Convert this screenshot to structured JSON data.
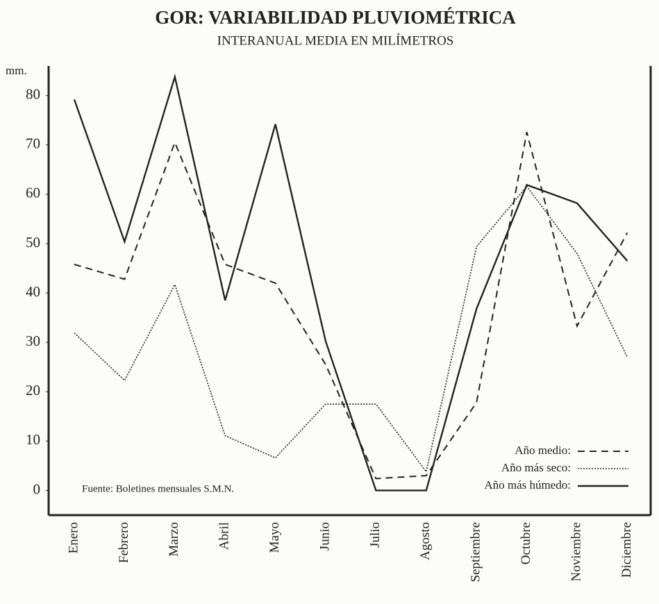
{
  "chart_data": {
    "type": "line",
    "title": "GOR: VARIABILIDAD PLUVIOMÉTRICA",
    "subtitle": "INTERANUAL MEDIA EN MILÍMETROS",
    "y_label": "mm.",
    "annotation": "Fuente: Boletines mensuales S.M.N.",
    "categories": [
      "Enero",
      "Febrero",
      "Marzo",
      "Abril",
      "Mayo",
      "Junio",
      "Julio",
      "Agosto",
      "Septiembre",
      "Octubre",
      "Noviembre",
      "Diciembre"
    ],
    "series": [
      {
        "name": "Año medio:",
        "color": "#222222",
        "style": "dashed",
        "values": [
          45.8,
          42.8,
          70.5,
          45.8,
          42,
          25.5,
          2.4,
          3,
          17.8,
          72.6,
          33.3,
          52.2
        ]
      },
      {
        "name": "Año más seco:",
        "color": "#222222",
        "style": "dotted",
        "values": [
          31.9,
          22.3,
          41.7,
          11.1,
          6.6,
          17.5,
          17.5,
          3.8,
          49.4,
          61.6,
          48,
          27
        ]
      },
      {
        "name": "Año más húmedo:",
        "color": "#222222",
        "style": "solid",
        "values": [
          79.2,
          50.4,
          83.8,
          38.5,
          74.2,
          30.2,
          0,
          0,
          36.8,
          61.9,
          58.2,
          46.5
        ]
      }
    ],
    "ylim": [
      -5,
      86
    ],
    "yticks": [
      0,
      10,
      20,
      30,
      40,
      50,
      60,
      70,
      80
    ],
    "legend": "lower right",
    "grid": false
  }
}
